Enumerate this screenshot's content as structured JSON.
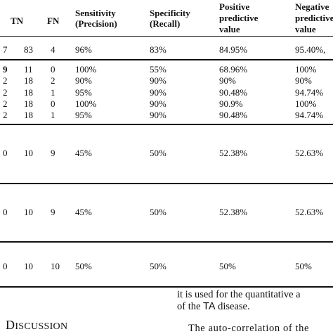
{
  "table": {
    "headers": {
      "tn": "TN",
      "fn": "FN",
      "sensitivity": [
        "Sensitivity",
        "(Precision)"
      ],
      "specificity": [
        "Specificity",
        "(Recall)"
      ],
      "ppv": [
        "Positive",
        "predictive",
        "value"
      ],
      "npv": [
        "Negative",
        "predictive",
        "value"
      ]
    },
    "rows": [
      {
        "lead": "7",
        "tn": "83",
        "fn": "4",
        "sens": "96%",
        "spec": "83%",
        "ppv": "84.95%",
        "npv": "95.40%,"
      },
      {
        "lead": "9",
        "tn": "11",
        "fn": "0",
        "sens": "100%",
        "spec": "55%",
        "ppv": "68.96%",
        "npv": "100%"
      },
      {
        "lead": "2",
        "tn": "18",
        "fn": "2",
        "sens": "90%",
        "spec": "90%",
        "ppv": "90%",
        "npv": "90%"
      },
      {
        "lead": "2",
        "tn": "18",
        "fn": "1",
        "sens": "95%",
        "spec": "90%",
        "ppv": "90.48%",
        "npv": "94.74%"
      },
      {
        "lead": "2",
        "tn": "18",
        "fn": "0",
        "sens": "100%",
        "spec": "90%",
        "ppv": "90.9%",
        "npv": "100%"
      },
      {
        "lead": "2",
        "tn": "18",
        "fn": "1",
        "sens": "95%",
        "spec": "90%",
        "ppv": "90.48%",
        "npv": "94.74%"
      },
      {
        "lead": "0",
        "tn": "10",
        "fn": "9",
        "sens": "45%",
        "spec": "50%",
        "ppv": "52.38%",
        "npv": "52.63%"
      },
      {
        "lead": "0",
        "tn": "10",
        "fn": "9",
        "sens": "45%",
        "spec": "50%",
        "ppv": "52.38%",
        "npv": "52.63%"
      },
      {
        "lead": "0",
        "tn": "10",
        "fn": "10",
        "sens": "50%",
        "spec": "50%",
        "ppv": "50%",
        "npv": "50%"
      }
    ]
  },
  "body_text": {
    "line1": "it is used for the quantitative a",
    "line2_pre": "of the ",
    "line2_ta": "TA",
    "line2_post": " disease.",
    "line3": "The auto-correlation of the"
  },
  "section": {
    "first_letter": "D",
    "rest": "ISCUSSION"
  }
}
